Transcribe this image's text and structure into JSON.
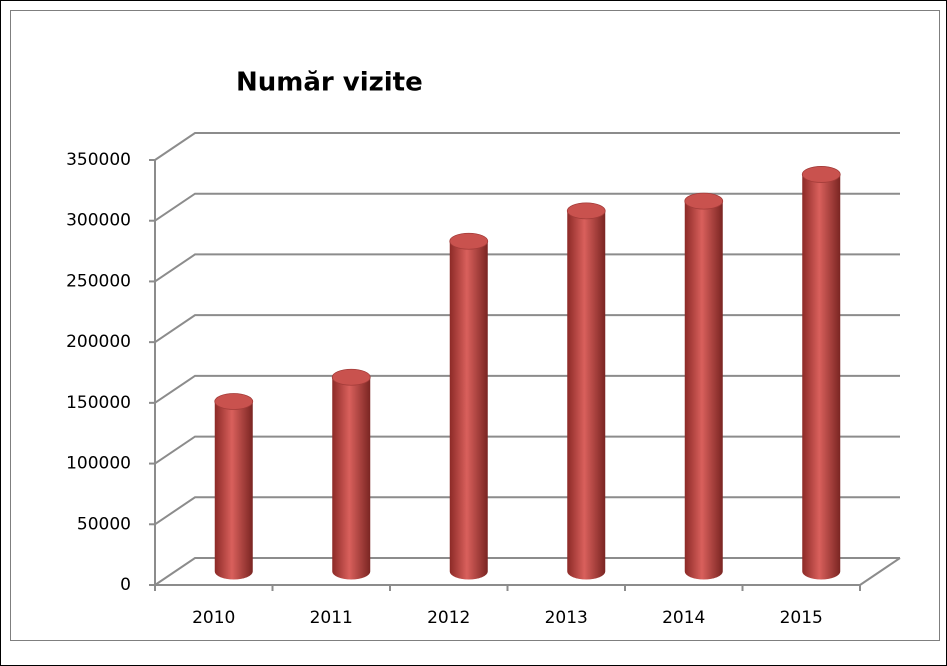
{
  "chart_data": {
    "type": "bar3d",
    "title": "Număr vizite",
    "categories": [
      "2010",
      "2011",
      "2012",
      "2013",
      "2014",
      "2015"
    ],
    "values": [
      140000,
      160000,
      272000,
      297000,
      305000,
      327000
    ],
    "color": "#c0504d",
    "ylim": [
      0,
      350000
    ],
    "yticks": [
      0,
      50000,
      100000,
      150000,
      200000,
      250000,
      300000,
      350000
    ],
    "grid": true
  }
}
